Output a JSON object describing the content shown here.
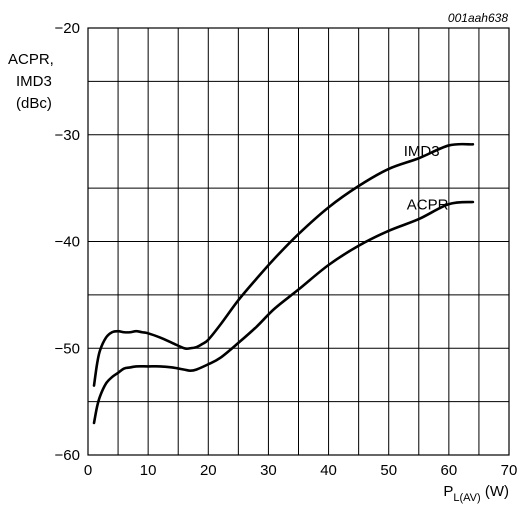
{
  "chart_data": {
    "type": "line",
    "figure_id": "001aah638",
    "xlabel": {
      "main": "P",
      "sub": "L(AV)",
      "unit": " (W)"
    },
    "ylabel": [
      "ACPR,",
      "IMD3",
      "(dBc)"
    ],
    "xlim": [
      0,
      70
    ],
    "ylim": [
      -60,
      -20
    ],
    "x_major_ticks": [
      0,
      10,
      20,
      30,
      40,
      50,
      60,
      70
    ],
    "x_minor_ticks": [
      5,
      15,
      25,
      35,
      45,
      55,
      65
    ],
    "x_tick_labels": [
      "0",
      "10",
      "20",
      "30",
      "40",
      "50",
      "60",
      "70"
    ],
    "y_major_ticks": [
      -60,
      -50,
      -40,
      -30,
      -20
    ],
    "y_minor_ticks": [
      -55,
      -45,
      -35,
      -25
    ],
    "y_tick_labels": [
      "−60",
      "−50",
      "−40",
      "−30",
      "−20"
    ],
    "grid": true,
    "series": [
      {
        "name": "IMD3",
        "x": [
          1,
          1.5,
          2,
          3,
          4,
          5,
          6,
          7,
          8,
          9,
          10,
          12,
          14,
          16,
          17,
          18,
          19,
          20,
          22,
          25,
          28,
          31,
          35,
          40,
          45,
          50,
          55,
          60,
          64
        ],
        "y": [
          -53.5,
          -51.5,
          -50.2,
          -49.0,
          -48.5,
          -48.4,
          -48.5,
          -48.5,
          -48.4,
          -48.5,
          -48.6,
          -49.0,
          -49.5,
          -50.0,
          -50.0,
          -49.9,
          -49.6,
          -49.2,
          -47.8,
          -45.5,
          -43.5,
          -41.6,
          -39.3,
          -36.8,
          -34.8,
          -33.2,
          -32.2,
          -31.0,
          -30.9
        ]
      },
      {
        "name": "ACPR",
        "x": [
          1,
          1.5,
          2,
          3,
          4,
          5,
          6,
          7,
          8,
          10,
          12,
          14,
          16,
          17,
          18,
          20,
          22,
          25,
          28,
          31,
          35,
          40,
          45,
          50,
          55,
          60,
          64
        ],
        "y": [
          -57.0,
          -55.5,
          -54.5,
          -53.3,
          -52.7,
          -52.3,
          -51.9,
          -51.8,
          -51.7,
          -51.7,
          -51.7,
          -51.8,
          -52.0,
          -52.1,
          -52.0,
          -51.5,
          -50.9,
          -49.5,
          -48.0,
          -46.3,
          -44.5,
          -42.2,
          -40.4,
          -39.0,
          -37.9,
          -36.5,
          -36.3
        ]
      }
    ],
    "annotations": [
      {
        "text": "IMD3",
        "x": 52.5,
        "y": -32.0,
        "anchor": "start"
      },
      {
        "text": "ACPR",
        "x": 53.0,
        "y": -37.0,
        "anchor": "start"
      }
    ]
  }
}
